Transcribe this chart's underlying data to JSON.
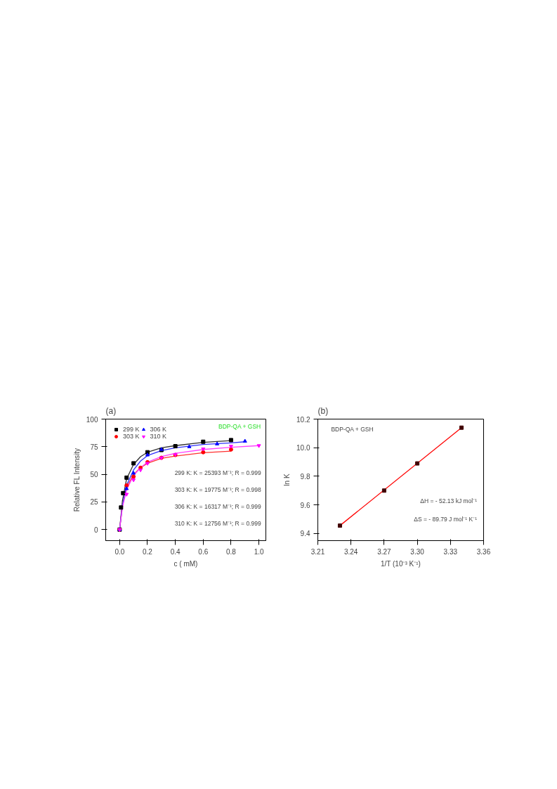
{
  "chart_data": [
    {
      "type": "scatter",
      "title": "(a)",
      "xlabel": "c ( mM)",
      "ylabel": "Relative FL Intensity",
      "xlim": [
        -0.1,
        1.05
      ],
      "xticks": [
        {
          "value": 0,
          "label": "0.0"
        },
        0.2,
        0.4,
        0.6,
        0.8,
        {
          "value": 1,
          "label": "1.0"
        }
      ],
      "ylim": [
        -10,
        100
      ],
      "yticks": [
        0,
        25,
        50,
        75,
        100
      ],
      "grid": false,
      "legend": "top left",
      "annotations": [
        "BDP-QA + GSH",
        "299 K: K = 25393 M⁻¹; R = 0.999",
        "303 K: K = 19775 M⁻¹; R = 0.998",
        "306 K: K = 16317 M⁻¹; R = 0.999",
        "310 K: K = 12756 M⁻¹; R = 0.999"
      ],
      "series": [
        {
          "type": "line",
          "marker": "none",
          "color": "#303030",
          "x": [
            0,
            0.02,
            0.05,
            0.1,
            0.15,
            0.2,
            0.3,
            0.4,
            0.6,
            0.8
          ],
          "values": [
            0,
            26,
            46,
            59,
            66,
            70,
            74,
            76,
            79,
            80.5
          ]
        },
        {
          "type": "line",
          "marker": "none",
          "color": "#ff3030",
          "x": [
            0,
            0.02,
            0.05,
            0.1,
            0.15,
            0.2,
            0.3,
            0.4,
            0.6,
            0.8
          ],
          "values": [
            0,
            22,
            38,
            50,
            56,
            60,
            64.5,
            66.5,
            69.5,
            71
          ]
        },
        {
          "type": "line",
          "marker": "none",
          "color": "#3030ff",
          "x": [
            0,
            0.02,
            0.05,
            0.1,
            0.15,
            0.2,
            0.3,
            0.4,
            0.6,
            0.8,
            0.9
          ],
          "values": [
            0,
            22,
            40,
            54,
            62,
            67,
            71.5,
            74,
            77,
            78.5,
            79.5
          ]
        },
        {
          "type": "line",
          "marker": "none",
          "color": "#ff40ff",
          "x": [
            0,
            0.02,
            0.05,
            0.1,
            0.15,
            0.2,
            0.3,
            0.4,
            0.6,
            0.8,
            1.0
          ],
          "values": [
            0,
            20,
            36,
            49,
            56,
            61,
            66,
            69,
            72.5,
            74.5,
            76
          ]
        },
        {
          "name": "299 K",
          "marker": "square",
          "color": "#000000",
          "x": [
            0,
            0.01,
            0.025,
            0.05,
            0.1,
            0.2,
            0.3,
            0.4,
            0.6,
            0.8
          ],
          "values": [
            0,
            20,
            33,
            47,
            60,
            70,
            72,
            75.5,
            79.5,
            81
          ]
        },
        {
          "name": "303 K",
          "marker": "circle",
          "color": "#ff0000",
          "x": [
            0,
            0.05,
            0.1,
            0.15,
            0.2,
            0.3,
            0.4,
            0.6,
            0.8
          ],
          "values": [
            0,
            40,
            48,
            56,
            61,
            65,
            67.5,
            70,
            72.5
          ]
        },
        {
          "name": "306 K",
          "marker": "triangle",
          "color": "#0000ff",
          "x": [
            0,
            0.05,
            0.1,
            0.2,
            0.3,
            0.5,
            0.7,
            0.9
          ],
          "values": [
            0,
            37,
            51,
            67.5,
            72.5,
            75,
            77.5,
            80
          ]
        },
        {
          "name": "310 K",
          "marker": "triangle_down",
          "color": "#ff00ff",
          "x": [
            0,
            0.05,
            0.1,
            0.15,
            0.2,
            0.3,
            0.4,
            0.6,
            0.8,
            1.0
          ],
          "values": [
            0,
            32,
            45,
            54,
            60,
            65,
            68,
            73,
            75.5,
            76
          ]
        }
      ]
    },
    {
      "type": "scatter",
      "title": "(b)",
      "xlabel": "1/T (10⁻³ K⁻¹)",
      "ylabel": "ln K",
      "xlim": [
        3.21,
        3.36
      ],
      "xticks": [
        3.21,
        3.24,
        3.27,
        {
          "value": 3.3,
          "label": "3.30"
        },
        3.33,
        3.36
      ],
      "ylim": [
        9.35,
        10.2
      ],
      "yticks": [
        9.4,
        9.6,
        9.8,
        {
          "value": 10,
          "label": "10.0"
        },
        10.2
      ],
      "grid": false,
      "legend": false,
      "annotations": [
        "BDP-QA + GSH",
        "ΔH = - 52.13 kJ mol⁻¹",
        "ΔS = - 89.79 J mol⁻¹ K⁻¹"
      ],
      "series": [
        {
          "type": "line",
          "marker": "none",
          "color": "#ff0000",
          "x": [
            3.23,
            3.34
          ],
          "values": [
            9.455,
            10.14
          ]
        },
        {
          "marker": "square",
          "color": "#400000",
          "x": [
            3.23,
            3.27,
            3.3,
            3.34
          ],
          "values": [
            9.455,
            9.7,
            9.89,
            10.14
          ]
        }
      ]
    }
  ]
}
